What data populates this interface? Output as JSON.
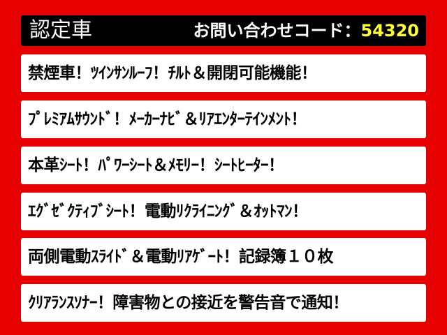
{
  "header": {
    "title": "認定車",
    "inquiry_label": "お問い合わせコード：",
    "inquiry_code": "54320",
    "code_color": "#ffff33"
  },
  "features": [
    "禁煙車！ﾂｲﾝｻﾝﾙｰﾌ！ﾁﾙﾄ＆開閉可能機能！",
    "ﾌﾟﾚﾐｱﾑｻｳﾝﾄﾞ！ﾒｰｶｰﾅﾋﾞ＆ﾘｱｴﾝﾀｰﾃｲﾝﾒﾝﾄ！",
    "本革ｼｰﾄ！ﾊﾟﾜｰｼｰﾄ＆ﾒﾓﾘｰ！ｼｰﾄﾋｰﾀｰ！",
    "ｴｸﾞｾﾞｸﾃｨﾌﾞｼｰﾄ！電動ﾘｸﾗｲﾆﾝｸﾞ＆ｵｯﾄﾏﾝ！",
    "両側電動ｽﾗｲﾄﾞ＆電動ﾘｱｹﾞｰﾄ！記録簿１０枚",
    "ｸﾘｱﾗﾝｽｿﾅｰ！障害物との接近を警告音で通知！"
  ],
  "colors": {
    "background": "#e60000",
    "header": "#000000",
    "box": "#ffffff"
  }
}
